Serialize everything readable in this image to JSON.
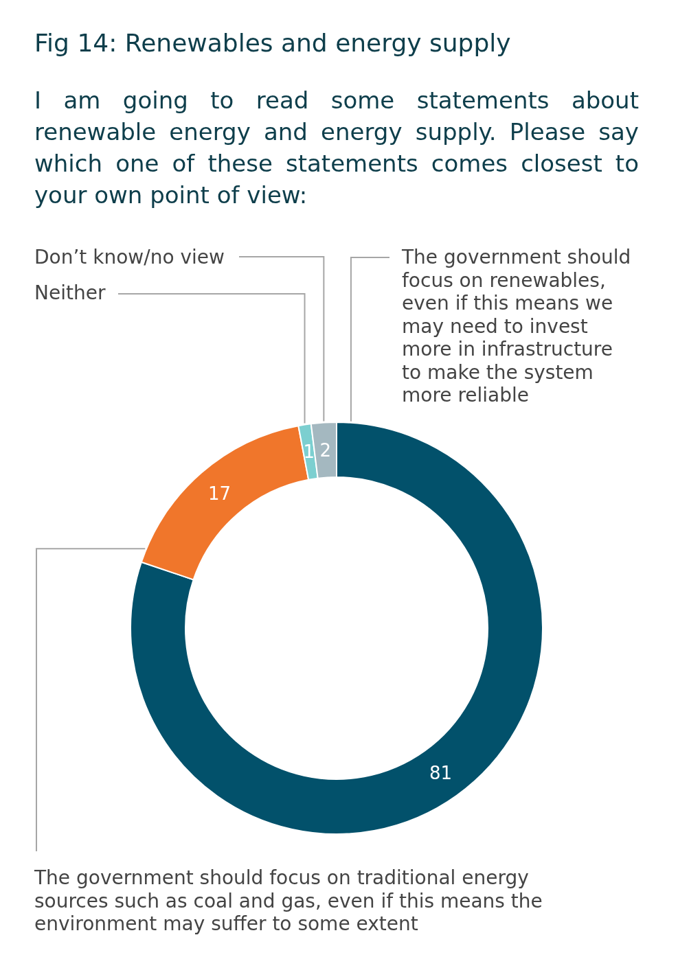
{
  "chart_data": {
    "type": "donut",
    "title": "Fig 14: Renewables and energy supply",
    "subtitle": "I am going to read some statements about renewable energy and energy supply. Please say which one of these statements comes closest to your own point of view:",
    "categories": [
      "The government should focus on renewables, even if this means we may need to invest more in infrastructure to make the system more reliable",
      "The government should focus on traditional energy sources such as coal and gas, even if this means the environment may suffer to some extent",
      "Neither",
      "Don’t know/no view"
    ],
    "values": [
      81,
      17,
      1,
      2
    ],
    "colors": [
      "#02516b",
      "#f0762b",
      "#7ccfd0",
      "#a4b8c0"
    ],
    "data_labels": true
  }
}
